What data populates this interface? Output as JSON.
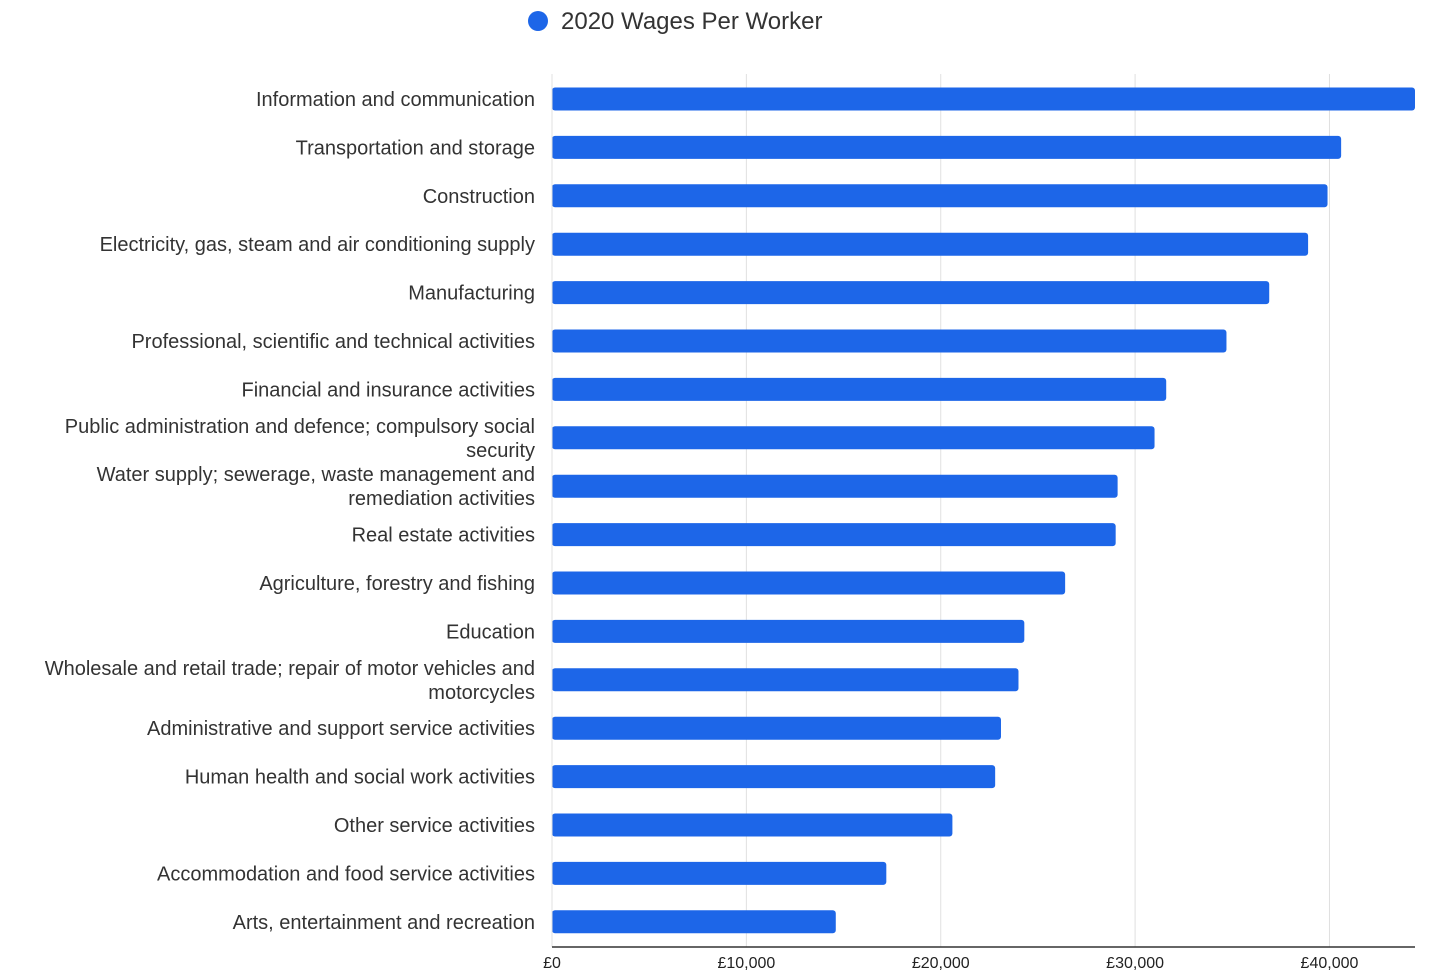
{
  "chart_data": {
    "type": "bar",
    "orientation": "horizontal",
    "title": "",
    "xlabel": "",
    "ylabel": "",
    "legend": {
      "position": "top",
      "entries": [
        "2020 Wages Per Worker"
      ]
    },
    "series": [
      {
        "name": "2020 Wages Per Worker",
        "color": "#1d66e8",
        "values": [
          44400,
          40600,
          39900,
          38900,
          36900,
          34700,
          31600,
          31000,
          29100,
          29000,
          26400,
          24300,
          24000,
          23100,
          22800,
          20600,
          17200,
          14600
        ]
      }
    ],
    "categories": [
      [
        "Information and communication"
      ],
      [
        "Transportation and storage"
      ],
      [
        "Construction"
      ],
      [
        "Electricity, gas, steam and air conditioning supply"
      ],
      [
        "Manufacturing"
      ],
      [
        "Professional, scientific and technical activities"
      ],
      [
        "Financial and insurance activities"
      ],
      [
        "Public administration and defence; compulsory social",
        "security"
      ],
      [
        "Water supply; sewerage, waste management and",
        "remediation activities"
      ],
      [
        "Real estate activities"
      ],
      [
        "Agriculture, forestry and fishing"
      ],
      [
        "Education"
      ],
      [
        "Wholesale and retail trade; repair of motor vehicles and",
        "motorcycles"
      ],
      [
        "Administrative and support service activities"
      ],
      [
        "Human health and social work activities"
      ],
      [
        "Other service activities"
      ],
      [
        "Accommodation and food service activities"
      ],
      [
        "Arts, entertainment and recreation"
      ]
    ],
    "x_ticks": [
      {
        "value": 0,
        "label": "£0"
      },
      {
        "value": 10000,
        "label": "£10,000"
      },
      {
        "value": 20000,
        "label": "£20,000"
      },
      {
        "value": 30000,
        "label": "£30,000"
      },
      {
        "value": 40000,
        "label": "£40,000"
      }
    ],
    "xlim": [
      0,
      44400
    ],
    "grid": true,
    "colors": {
      "bar": "#1d66e8",
      "grid": "#e0e0e0",
      "axis": "#333333"
    }
  }
}
